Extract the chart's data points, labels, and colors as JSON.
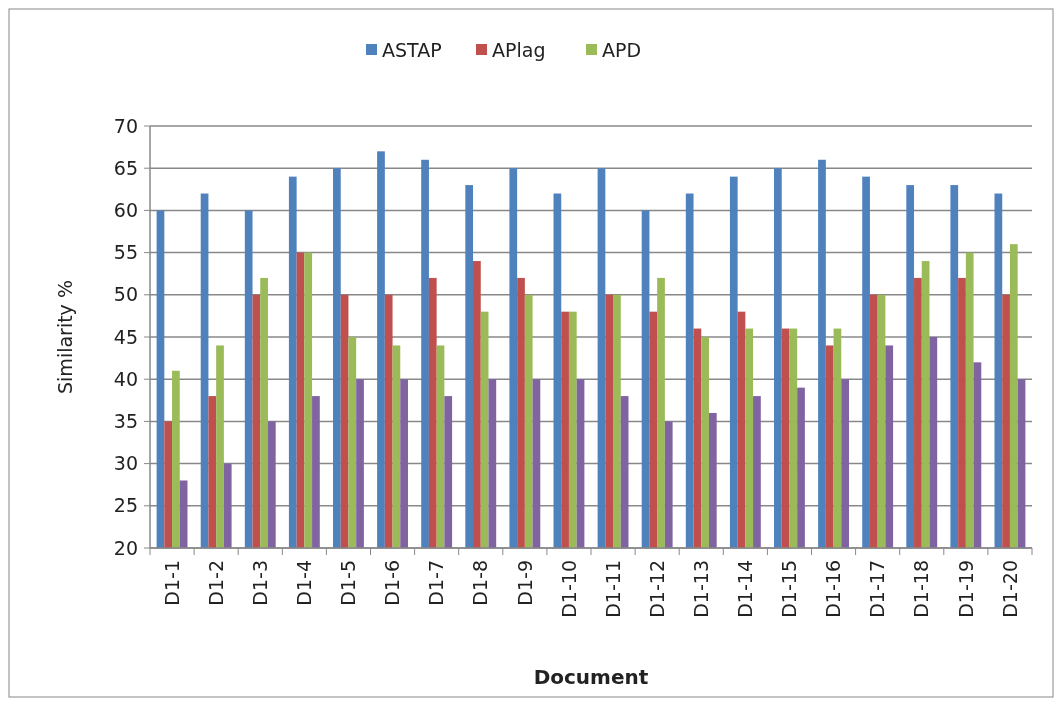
{
  "chart_data": {
    "type": "bar",
    "xlabel": "Document",
    "ylabel": "Similarity %",
    "categories": [
      "D1-1",
      "D1-2",
      "D1-3",
      "D1-4",
      "D1-5",
      "D1-6",
      "D1-7",
      "D1-8",
      "D1-9",
      "D1-10",
      "D1-11",
      "D1-12",
      "D1-13",
      "D1-14",
      "D1-15",
      "D1-16",
      "D1-17",
      "D1-18",
      "D1-19",
      "D1-20"
    ],
    "series": [
      {
        "name": "ASTAP",
        "color": "#4f81bd",
        "values": [
          60,
          62,
          60,
          64,
          65,
          67,
          66,
          63,
          65,
          62,
          65,
          60,
          62,
          64,
          65,
          66,
          64,
          63,
          63,
          62
        ]
      },
      {
        "name": "APlag",
        "color": "#c0504d",
        "values": [
          35,
          38,
          50,
          55,
          50,
          50,
          52,
          54,
          52,
          48,
          50,
          48,
          46,
          48,
          46,
          44,
          50,
          52,
          52,
          50
        ]
      },
      {
        "name": "APD",
        "color": "#9bbb59",
        "values": [
          41,
          44,
          52,
          55,
          45,
          44,
          44,
          48,
          50,
          48,
          50,
          52,
          45,
          46,
          46,
          46,
          50,
          54,
          55,
          56
        ]
      },
      {
        "color": "#8064a2",
        "values": [
          28,
          30,
          35,
          38,
          40,
          40,
          38,
          40,
          40,
          40,
          38,
          35,
          36,
          38,
          39,
          40,
          44,
          45,
          42,
          40
        ]
      }
    ],
    "ylim": [
      20,
      70
    ],
    "yticks": [
      20,
      25,
      30,
      35,
      40,
      45,
      50,
      55,
      60,
      65,
      70
    ],
    "grid": "y",
    "legend": "top"
  }
}
